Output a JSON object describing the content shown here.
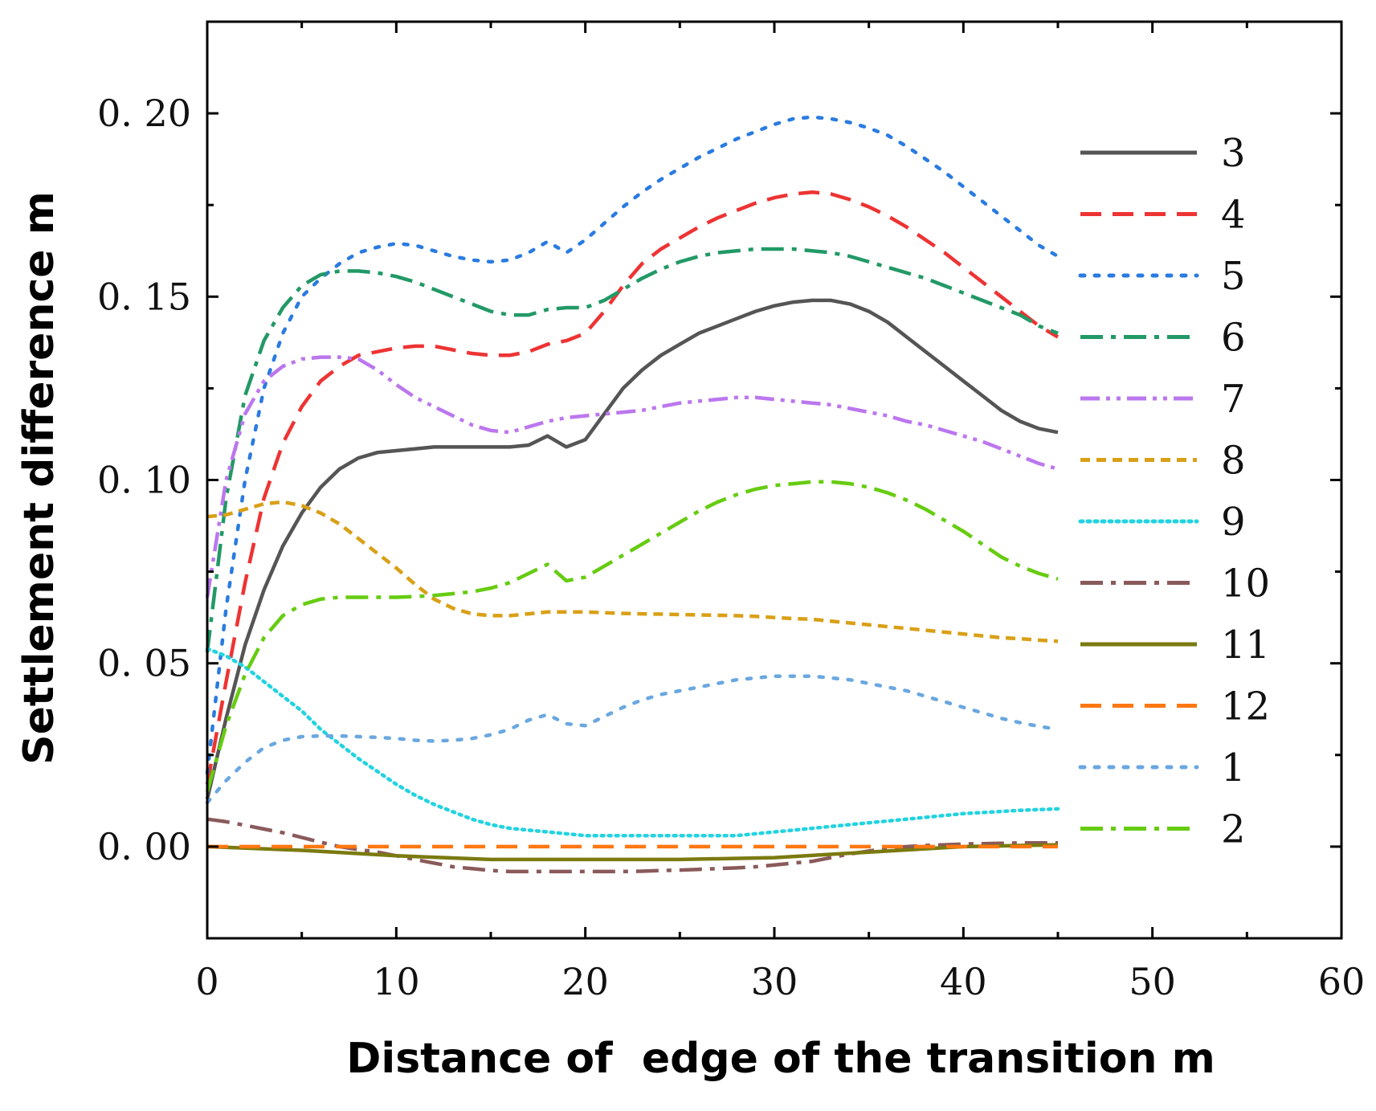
{
  "chart_data": {
    "type": "line",
    "title": "",
    "xlabel": "Distance of  edge of the transition m",
    "ylabel": "Settlement difference m",
    "xlim": [
      0,
      60
    ],
    "ylim": [
      -0.025,
      0.225
    ],
    "xticks": [
      0,
      10,
      20,
      30,
      40,
      50,
      60
    ],
    "xtick_labels": [
      "0",
      "10",
      "20",
      "30",
      "40",
      "50",
      "60"
    ],
    "yticks": [
      0.0,
      0.05,
      0.1,
      0.15,
      0.2
    ],
    "ytick_labels": [
      "0. 00",
      "0. 05",
      "0. 10",
      "0. 15",
      "0. 20"
    ],
    "legend_position": "right",
    "series": [
      {
        "name": "3",
        "color": "#555555",
        "style": "solid",
        "x": [
          0,
          1,
          2,
          3,
          4,
          5,
          6,
          7,
          8,
          9,
          10,
          11,
          12,
          13,
          14,
          15,
          16,
          17,
          18,
          19,
          20,
          21,
          22,
          23,
          24,
          25,
          26,
          27,
          28,
          29,
          30,
          31,
          32,
          33,
          34,
          35,
          36,
          37,
          38,
          39,
          40,
          41,
          42,
          43,
          44,
          45
        ],
        "y": [
          0.013,
          0.035,
          0.055,
          0.07,
          0.082,
          0.091,
          0.098,
          0.103,
          0.106,
          0.1075,
          0.108,
          0.1085,
          0.109,
          0.109,
          0.109,
          0.109,
          0.109,
          0.1095,
          0.112,
          0.109,
          0.111,
          0.118,
          0.125,
          0.13,
          0.134,
          0.137,
          0.14,
          0.142,
          0.144,
          0.146,
          0.1475,
          0.1485,
          0.149,
          0.149,
          0.148,
          0.146,
          0.143,
          0.139,
          0.135,
          0.131,
          0.127,
          0.123,
          0.119,
          0.116,
          0.114,
          0.113
        ]
      },
      {
        "name": "4",
        "color": "#ee3333",
        "style": "dashed",
        "x": [
          0,
          1,
          2,
          3,
          4,
          5,
          6,
          7,
          8,
          9,
          10,
          11,
          12,
          13,
          14,
          15,
          16,
          17,
          18,
          19,
          20,
          21,
          22,
          23,
          24,
          25,
          26,
          27,
          28,
          29,
          30,
          31,
          32,
          33,
          34,
          35,
          36,
          37,
          38,
          39,
          40,
          41,
          42,
          43,
          44,
          45
        ],
        "y": [
          0.017,
          0.045,
          0.072,
          0.095,
          0.11,
          0.12,
          0.127,
          0.131,
          0.134,
          0.135,
          0.136,
          0.1365,
          0.1365,
          0.1355,
          0.1345,
          0.134,
          0.134,
          0.135,
          0.137,
          0.138,
          0.14,
          0.146,
          0.153,
          0.159,
          0.163,
          0.166,
          0.169,
          0.1715,
          0.1735,
          0.1755,
          0.177,
          0.178,
          0.1785,
          0.178,
          0.1765,
          0.1745,
          0.172,
          0.169,
          0.1655,
          0.162,
          0.158,
          0.154,
          0.15,
          0.146,
          0.142,
          0.139
        ]
      },
      {
        "name": "5",
        "color": "#2a7be0",
        "style": "dotted",
        "x": [
          0,
          1,
          2,
          3,
          4,
          5,
          6,
          7,
          8,
          9,
          10,
          11,
          12,
          13,
          14,
          15,
          16,
          17,
          18,
          19,
          20,
          21,
          22,
          23,
          24,
          25,
          26,
          27,
          28,
          29,
          30,
          31,
          32,
          33,
          34,
          35,
          36,
          37,
          38,
          39,
          40,
          41,
          42,
          43,
          44,
          45
        ],
        "y": [
          0.02,
          0.065,
          0.1,
          0.125,
          0.14,
          0.15,
          0.155,
          0.159,
          0.162,
          0.1635,
          0.1645,
          0.164,
          0.1625,
          0.161,
          0.16,
          0.1595,
          0.16,
          0.162,
          0.165,
          0.162,
          0.1655,
          0.17,
          0.1745,
          0.1785,
          0.182,
          0.185,
          0.188,
          0.1905,
          0.193,
          0.195,
          0.197,
          0.1985,
          0.199,
          0.1985,
          0.1975,
          0.196,
          0.194,
          0.191,
          0.1875,
          0.184,
          0.18,
          0.176,
          0.172,
          0.168,
          0.164,
          0.161
        ]
      },
      {
        "name": "6",
        "color": "#229966",
        "style": "dashdot",
        "x": [
          0,
          1,
          2,
          3,
          4,
          5,
          6,
          7,
          8,
          9,
          10,
          11,
          12,
          13,
          14,
          15,
          16,
          17,
          18,
          19,
          20,
          21,
          22,
          23,
          24,
          25,
          26,
          27,
          28,
          29,
          30,
          31,
          32,
          33,
          34,
          35,
          36,
          37,
          38,
          39,
          40,
          41,
          42,
          43,
          44,
          45
        ],
        "y": [
          0.053,
          0.095,
          0.123,
          0.138,
          0.147,
          0.153,
          0.156,
          0.157,
          0.157,
          0.1565,
          0.1555,
          0.154,
          0.152,
          0.15,
          0.148,
          0.146,
          0.145,
          0.145,
          0.1465,
          0.147,
          0.147,
          0.149,
          0.152,
          0.155,
          0.1575,
          0.1595,
          0.161,
          0.162,
          0.1625,
          0.163,
          0.163,
          0.163,
          0.1625,
          0.162,
          0.161,
          0.1595,
          0.158,
          0.1565,
          0.155,
          0.153,
          0.151,
          0.149,
          0.147,
          0.145,
          0.142,
          0.14
        ]
      },
      {
        "name": "7",
        "color": "#bb77ee",
        "style": "dashdotdot",
        "x": [
          0,
          1,
          2,
          3,
          4,
          5,
          6,
          7,
          8,
          9,
          10,
          11,
          12,
          13,
          14,
          15,
          16,
          17,
          18,
          19,
          20,
          21,
          22,
          23,
          24,
          25,
          26,
          27,
          28,
          29,
          30,
          31,
          32,
          33,
          34,
          35,
          36,
          37,
          38,
          39,
          40,
          41,
          42,
          43,
          44,
          45
        ],
        "y": [
          0.068,
          0.1,
          0.118,
          0.127,
          0.131,
          0.133,
          0.1335,
          0.1335,
          0.133,
          0.13,
          0.126,
          0.1225,
          0.12,
          0.1175,
          0.115,
          0.1135,
          0.113,
          0.1145,
          0.116,
          0.117,
          0.1175,
          0.118,
          0.1185,
          0.119,
          0.12,
          0.121,
          0.1215,
          0.122,
          0.1225,
          0.1225,
          0.122,
          0.1215,
          0.121,
          0.1205,
          0.1195,
          0.1185,
          0.1175,
          0.116,
          0.115,
          0.1135,
          0.112,
          0.1105,
          0.1085,
          0.1065,
          0.1045,
          0.103
        ]
      },
      {
        "name": "8",
        "color": "#d9a017",
        "style": "shortdash",
        "x": [
          0,
          1,
          2,
          3,
          4,
          5,
          6,
          7,
          8,
          9,
          10,
          11,
          12,
          13,
          14,
          15,
          16,
          17,
          18,
          19,
          20,
          21,
          22,
          23,
          24,
          25,
          26,
          27,
          28,
          29,
          30,
          31,
          32,
          33,
          34,
          35,
          36,
          37,
          38,
          39,
          40,
          41,
          42,
          43,
          44,
          45
        ],
        "y": [
          0.09,
          0.0905,
          0.092,
          0.0935,
          0.094,
          0.093,
          0.091,
          0.088,
          0.084,
          0.08,
          0.076,
          0.0715,
          0.0675,
          0.065,
          0.0635,
          0.063,
          0.063,
          0.0635,
          0.064,
          0.064,
          0.064,
          0.0638,
          0.0636,
          0.0635,
          0.0634,
          0.0633,
          0.0632,
          0.0631,
          0.063,
          0.0628,
          0.0625,
          0.0622,
          0.062,
          0.0615,
          0.061,
          0.0605,
          0.06,
          0.0595,
          0.059,
          0.0585,
          0.058,
          0.0575,
          0.057,
          0.0567,
          0.0563,
          0.056
        ]
      },
      {
        "name": "9",
        "color": "#22d3e0",
        "style": "finedot",
        "x": [
          0,
          1,
          2,
          3,
          4,
          5,
          6,
          7,
          8,
          9,
          10,
          11,
          12,
          13,
          14,
          15,
          16,
          17,
          18,
          19,
          20,
          21,
          22,
          23,
          24,
          25,
          26,
          27,
          28,
          29,
          30,
          31,
          32,
          33,
          34,
          35,
          36,
          37,
          38,
          39,
          40,
          41,
          42,
          43,
          44,
          45
        ],
        "y": [
          0.054,
          0.052,
          0.049,
          0.045,
          0.041,
          0.037,
          0.032,
          0.028,
          0.024,
          0.0205,
          0.017,
          0.014,
          0.0115,
          0.0095,
          0.0075,
          0.006,
          0.005,
          0.0045,
          0.004,
          0.0035,
          0.003,
          0.003,
          0.003,
          0.003,
          0.003,
          0.003,
          0.003,
          0.003,
          0.003,
          0.0035,
          0.004,
          0.0045,
          0.005,
          0.0055,
          0.006,
          0.0065,
          0.007,
          0.0075,
          0.008,
          0.0085,
          0.009,
          0.0093,
          0.0096,
          0.0099,
          0.0101,
          0.0103
        ]
      },
      {
        "name": "10",
        "color": "#8a5a5a",
        "style": "dashdot",
        "x": [
          0,
          1,
          2,
          3,
          4,
          5,
          6,
          7,
          8,
          9,
          10,
          11,
          12,
          13,
          14,
          15,
          16,
          17,
          18,
          19,
          20,
          21,
          22,
          23,
          24,
          25,
          26,
          27,
          28,
          29,
          30,
          31,
          32,
          33,
          34,
          35,
          36,
          37,
          38,
          39,
          40,
          41,
          42,
          43,
          44,
          45
        ],
        "y": [
          0.0075,
          0.0068,
          0.0058,
          0.0048,
          0.0038,
          0.0025,
          0.0012,
          0.0,
          -0.0008,
          -0.0015,
          -0.0025,
          -0.0035,
          -0.0045,
          -0.0055,
          -0.006,
          -0.0065,
          -0.0068,
          -0.0068,
          -0.0068,
          -0.0068,
          -0.0068,
          -0.0068,
          -0.0068,
          -0.0067,
          -0.0065,
          -0.0064,
          -0.0062,
          -0.006,
          -0.0058,
          -0.0055,
          -0.005,
          -0.0045,
          -0.004,
          -0.003,
          -0.002,
          -0.0012,
          -0.0005,
          0.0,
          0.0003,
          0.0005,
          0.0007,
          0.0008,
          0.0009,
          0.001,
          0.001,
          0.001
        ]
      },
      {
        "name": "11",
        "color": "#7a7a10",
        "style": "solid",
        "x": [
          0,
          5,
          10,
          15,
          20,
          25,
          30,
          35,
          40,
          45
        ],
        "y": [
          0.0,
          -0.001,
          -0.0025,
          -0.0035,
          -0.0035,
          -0.0035,
          -0.003,
          -0.0015,
          0.0,
          0.0005
        ]
      },
      {
        "name": "12",
        "color": "#ff7711",
        "style": "dashed",
        "x": [
          0,
          10,
          20,
          30,
          40,
          45
        ],
        "y": [
          0.0,
          0.0,
          0.0,
          0.0,
          0.0,
          0.0
        ]
      },
      {
        "name": "1",
        "color": "#6aa7e0",
        "style": "dotted",
        "x": [
          0,
          1,
          2,
          3,
          4,
          5,
          6,
          7,
          8,
          9,
          10,
          11,
          12,
          13,
          14,
          15,
          16,
          17,
          18,
          19,
          20,
          21,
          22,
          23,
          24,
          25,
          26,
          27,
          28,
          29,
          30,
          31,
          32,
          33,
          34,
          35,
          36,
          37,
          38,
          39,
          40,
          41,
          42,
          43,
          44,
          45
        ],
        "y": [
          0.012,
          0.018,
          0.023,
          0.027,
          0.029,
          0.03,
          0.0302,
          0.0302,
          0.03,
          0.0298,
          0.0295,
          0.029,
          0.0288,
          0.029,
          0.0295,
          0.0305,
          0.032,
          0.0345,
          0.036,
          0.0335,
          0.033,
          0.0355,
          0.038,
          0.04,
          0.0415,
          0.0425,
          0.0435,
          0.0445,
          0.0455,
          0.046,
          0.0465,
          0.0465,
          0.0465,
          0.046,
          0.0455,
          0.0445,
          0.0435,
          0.0425,
          0.041,
          0.0395,
          0.038,
          0.0365,
          0.035,
          0.0338,
          0.0328,
          0.032
        ]
      },
      {
        "name": "2",
        "color": "#66cc11",
        "style": "dashdot",
        "x": [
          0,
          1,
          2,
          3,
          4,
          5,
          6,
          7,
          8,
          9,
          10,
          11,
          12,
          13,
          14,
          15,
          16,
          17,
          18,
          19,
          20,
          21,
          22,
          23,
          24,
          25,
          26,
          27,
          28,
          29,
          30,
          31,
          32,
          33,
          34,
          35,
          36,
          37,
          38,
          39,
          40,
          41,
          42,
          43,
          44,
          45
        ],
        "y": [
          0.015,
          0.033,
          0.047,
          0.057,
          0.063,
          0.066,
          0.0675,
          0.068,
          0.068,
          0.068,
          0.068,
          0.0682,
          0.0685,
          0.069,
          0.0695,
          0.0705,
          0.072,
          0.0745,
          0.077,
          0.0725,
          0.0735,
          0.0765,
          0.0795,
          0.0825,
          0.0855,
          0.0885,
          0.0915,
          0.094,
          0.096,
          0.0975,
          0.0985,
          0.099,
          0.0995,
          0.0995,
          0.099,
          0.098,
          0.0965,
          0.0945,
          0.092,
          0.089,
          0.086,
          0.0825,
          0.079,
          0.0765,
          0.0745,
          0.073
        ]
      }
    ]
  }
}
